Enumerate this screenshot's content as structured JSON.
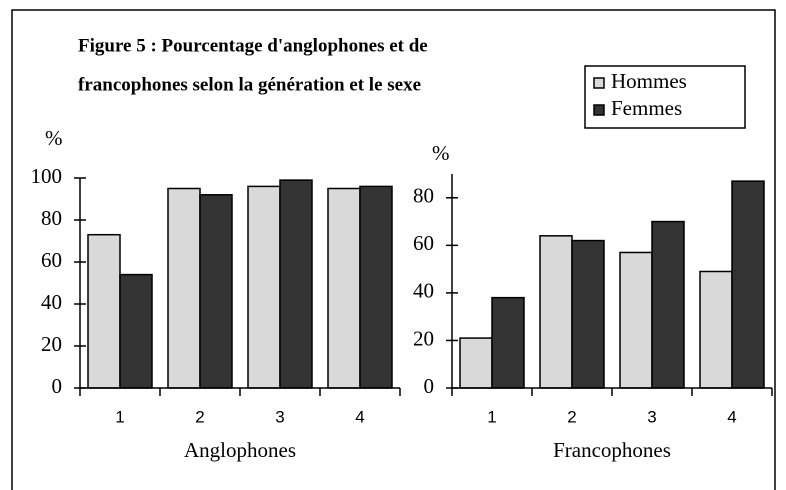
{
  "title": [
    "Figure 5 : Pourcentage d'anglophones et de",
    "francophones selon la génération et le sexe"
  ],
  "chart_data": [
    {
      "type": "bar",
      "ylabel": "%",
      "xlabel": "Anglophones",
      "categories": [
        "1",
        "2",
        "3",
        "4"
      ],
      "series": [
        {
          "name": "Hommes",
          "color": "#d9d9d9",
          "values": [
            73,
            95,
            96,
            95
          ]
        },
        {
          "name": "Femmes",
          "color": "#333333",
          "values": [
            54,
            92,
            99,
            96
          ]
        }
      ],
      "ylim": [
        0,
        100
      ],
      "yticks": [
        0,
        20,
        40,
        60,
        80,
        100
      ]
    },
    {
      "type": "bar",
      "ylabel": "%",
      "xlabel": "Francophones",
      "categories": [
        "1",
        "2",
        "3",
        "4"
      ],
      "series": [
        {
          "color": "#d9d9d9",
          "values": [
            21,
            64,
            57,
            49
          ]
        },
        {
          "color": "#333333",
          "values": [
            38,
            62,
            70,
            87
          ]
        }
      ],
      "ylim": [
        0,
        90
      ],
      "yticks": [
        0,
        20,
        40,
        60,
        80
      ]
    }
  ]
}
